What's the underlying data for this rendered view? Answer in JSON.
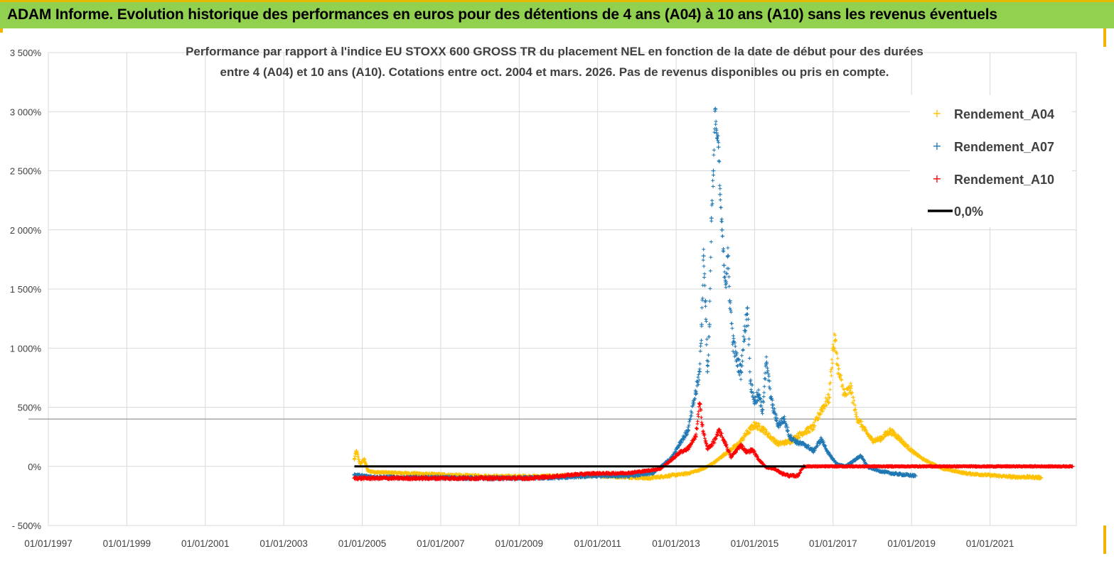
{
  "header": {
    "title": "ADAM Informe. Evolution historique des performances en euros pour des détentions de 4 ans (A04) à 10 ans (A10) sans les revenus éventuels"
  },
  "colors": {
    "banner": "#92d050",
    "a04": "#ffc000",
    "a07": "#1f77b4",
    "a10": "#ff0000",
    "zero_line": "#000000"
  },
  "chart_data": {
    "type": "scatter",
    "title_lines": [
      "Performance par rapport à l'indice EU STOXX 600 GROSS TR  du placement NEL en fonction de la date de début pour des durées",
      "entre 4 (A04) et 10 ans (A10). Cotations entre oct. 2004 et mars. 2026. Pas de revenus disponibles ou pris en compte."
    ],
    "y_ticks": [
      "3 500%",
      "3 000%",
      "2 500%",
      "2 000%",
      "1 500%",
      "1 000%",
      "500%",
      "0%",
      "- 500%"
    ],
    "x_ticks": [
      "01/01/1997",
      "01/01/1999",
      "01/01/2001",
      "01/01/2003",
      "01/01/2005",
      "01/01/2007",
      "01/01/2009",
      "01/01/2011",
      "01/01/2013",
      "01/01/2015",
      "01/01/2017",
      "01/01/2019",
      "01/01/2021"
    ],
    "ylim": [
      -500,
      3500
    ],
    "xlim": [
      1997.0,
      2023.2
    ],
    "grid": true,
    "legend_position": "top-right",
    "series": [
      {
        "name": "Rendement_A04",
        "color": "#ffc000",
        "marker": "+",
        "points": [
          [
            2004.8,
            60
          ],
          [
            2004.85,
            130
          ],
          [
            2004.95,
            20
          ],
          [
            2005.05,
            60
          ],
          [
            2005.15,
            -40
          ],
          [
            2005.4,
            -50
          ],
          [
            2005.8,
            -55
          ],
          [
            2006.3,
            -60
          ],
          [
            2007.0,
            -70
          ],
          [
            2007.8,
            -80
          ],
          [
            2008.6,
            -85
          ],
          [
            2009.4,
            -85
          ],
          [
            2010.2,
            -80
          ],
          [
            2011.0,
            -80
          ],
          [
            2011.8,
            -90
          ],
          [
            2012.3,
            -100
          ],
          [
            2012.8,
            -80
          ],
          [
            2013.3,
            -60
          ],
          [
            2013.7,
            -20
          ],
          [
            2014.0,
            40
          ],
          [
            2014.3,
            120
          ],
          [
            2014.6,
            190
          ],
          [
            2014.8,
            280
          ],
          [
            2015.0,
            350
          ],
          [
            2015.2,
            320
          ],
          [
            2015.4,
            250
          ],
          [
            2015.6,
            190
          ],
          [
            2015.9,
            210
          ],
          [
            2016.2,
            280
          ],
          [
            2016.5,
            330
          ],
          [
            2016.7,
            480
          ],
          [
            2016.9,
            580
          ],
          [
            2017.0,
            1000
          ],
          [
            2017.05,
            1060
          ],
          [
            2017.15,
            780
          ],
          [
            2017.3,
            600
          ],
          [
            2017.45,
            660
          ],
          [
            2017.6,
            420
          ],
          [
            2017.8,
            310
          ],
          [
            2018.0,
            220
          ],
          [
            2018.2,
            230
          ],
          [
            2018.45,
            300
          ],
          [
            2018.65,
            250
          ],
          [
            2018.85,
            180
          ],
          [
            2019.05,
            120
          ],
          [
            2019.3,
            60
          ],
          [
            2019.55,
            20
          ],
          [
            2019.8,
            -20
          ],
          [
            2020.1,
            -40
          ],
          [
            2020.4,
            -60
          ],
          [
            2020.8,
            -70
          ],
          [
            2021.2,
            -80
          ],
          [
            2021.6,
            -90
          ],
          [
            2022.0,
            -90
          ],
          [
            2022.3,
            -95
          ]
        ]
      },
      {
        "name": "Rendement_A07",
        "color": "#1f77b4",
        "marker": "+",
        "points": [
          [
            2004.8,
            -70
          ],
          [
            2005.0,
            -80
          ],
          [
            2005.3,
            -90
          ],
          [
            2006.0,
            -95
          ],
          [
            2007.0,
            -95
          ],
          [
            2008.0,
            -100
          ],
          [
            2009.0,
            -100
          ],
          [
            2010.0,
            -95
          ],
          [
            2011.0,
            -80
          ],
          [
            2011.8,
            -80
          ],
          [
            2012.4,
            -60
          ],
          [
            2012.9,
            80
          ],
          [
            2013.1,
            200
          ],
          [
            2013.3,
            300
          ],
          [
            2013.5,
            620
          ],
          [
            2013.6,
            800
          ],
          [
            2013.65,
            1200
          ],
          [
            2013.7,
            1780
          ],
          [
            2013.75,
            1400
          ],
          [
            2013.8,
            800
          ],
          [
            2013.85,
            1200
          ],
          [
            2013.9,
            2100
          ],
          [
            2013.95,
            2500
          ],
          [
            2014.0,
            3020
          ],
          [
            2014.03,
            2820
          ],
          [
            2014.08,
            2700
          ],
          [
            2014.12,
            2300
          ],
          [
            2014.17,
            2000
          ],
          [
            2014.22,
            1700
          ],
          [
            2014.27,
            1560
          ],
          [
            2014.32,
            1780
          ],
          [
            2014.37,
            1400
          ],
          [
            2014.45,
            1050
          ],
          [
            2014.55,
            900
          ],
          [
            2014.65,
            800
          ],
          [
            2014.75,
            1150
          ],
          [
            2014.82,
            1340
          ],
          [
            2014.9,
            700
          ],
          [
            2015.0,
            550
          ],
          [
            2015.1,
            600
          ],
          [
            2015.2,
            480
          ],
          [
            2015.3,
            870
          ],
          [
            2015.45,
            520
          ],
          [
            2015.6,
            350
          ],
          [
            2015.75,
            400
          ],
          [
            2015.9,
            250
          ],
          [
            2016.1,
            200
          ],
          [
            2016.3,
            180
          ],
          [
            2016.5,
            130
          ],
          [
            2016.7,
            230
          ],
          [
            2016.9,
            100
          ],
          [
            2017.1,
            20
          ],
          [
            2017.3,
            0
          ],
          [
            2017.5,
            40
          ],
          [
            2017.7,
            90
          ],
          [
            2017.9,
            -10
          ],
          [
            2018.2,
            -40
          ],
          [
            2018.5,
            -60
          ],
          [
            2018.8,
            -70
          ],
          [
            2019.1,
            -80
          ]
        ]
      },
      {
        "name": "Rendement_A10",
        "color": "#ff0000",
        "marker": "+",
        "points": [
          [
            2004.8,
            -100
          ],
          [
            2005.5,
            -100
          ],
          [
            2006.5,
            -100
          ],
          [
            2007.5,
            -100
          ],
          [
            2008.5,
            -100
          ],
          [
            2009.3,
            -100
          ],
          [
            2009.9,
            -85
          ],
          [
            2010.4,
            -70
          ],
          [
            2010.9,
            -60
          ],
          [
            2011.3,
            -60
          ],
          [
            2011.8,
            -55
          ],
          [
            2012.2,
            -40
          ],
          [
            2012.6,
            -20
          ],
          [
            2012.9,
            60
          ],
          [
            2013.1,
            120
          ],
          [
            2013.3,
            150
          ],
          [
            2013.5,
            250
          ],
          [
            2013.6,
            530
          ],
          [
            2013.7,
            280
          ],
          [
            2013.8,
            150
          ],
          [
            2013.95,
            200
          ],
          [
            2014.1,
            300
          ],
          [
            2014.25,
            200
          ],
          [
            2014.4,
            80
          ],
          [
            2014.5,
            120
          ],
          [
            2014.65,
            180
          ],
          [
            2014.8,
            120
          ],
          [
            2014.95,
            140
          ],
          [
            2015.1,
            60
          ],
          [
            2015.3,
            -10
          ],
          [
            2015.5,
            -20
          ],
          [
            2015.7,
            -60
          ],
          [
            2015.9,
            -80
          ],
          [
            2016.1,
            -80
          ],
          [
            2016.25,
            0
          ],
          [
            2016.8,
            0
          ],
          [
            2017.5,
            0
          ],
          [
            2018.5,
            0
          ],
          [
            2019.5,
            0
          ],
          [
            2020.5,
            0
          ],
          [
            2021.5,
            0
          ],
          [
            2022.5,
            0
          ],
          [
            2023.1,
            0
          ]
        ]
      },
      {
        "name": "0,0%",
        "color": "#000000",
        "marker": "line",
        "points": [
          [
            2004.8,
            0
          ],
          [
            2016.3,
            0
          ]
        ]
      }
    ],
    "gray_reference_line": 400
  }
}
